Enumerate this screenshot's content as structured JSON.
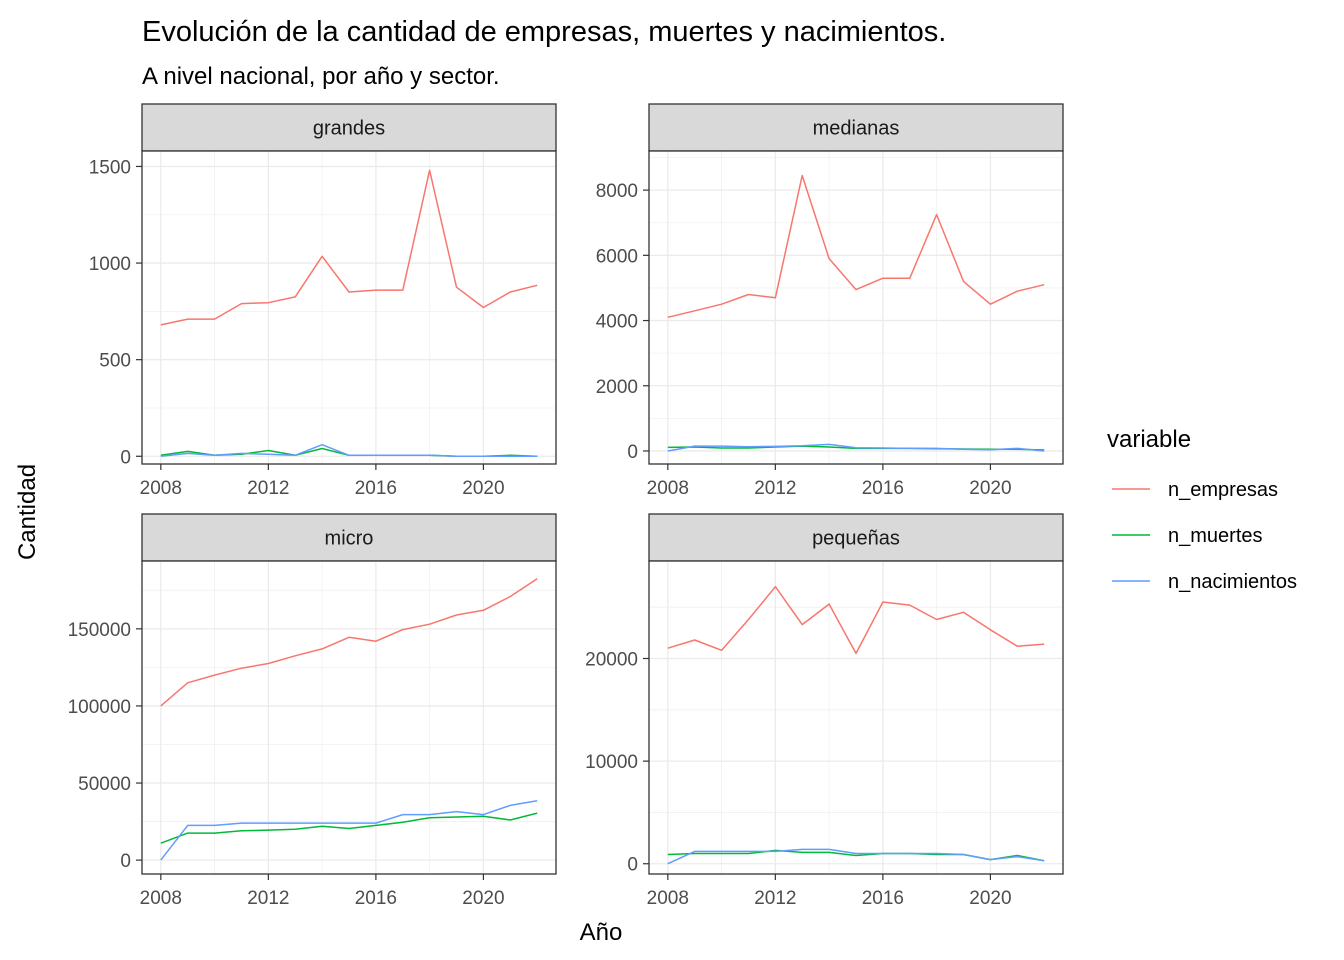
{
  "title": "Evolución de la cantidad de empresas, muertes y nacimientos.",
  "subtitle": "A nivel nacional, por año y sector.",
  "xlabel": "Año",
  "ylabel": "Cantidad",
  "legend": {
    "title": "variable",
    "items": [
      {
        "name": "n_empresas",
        "color": "#F8766D"
      },
      {
        "name": "n_muertes",
        "color": "#00BA38"
      },
      {
        "name": "n_nacimientos",
        "color": "#619CFF"
      }
    ]
  },
  "chart_data": {
    "type": "line",
    "x": [
      2008,
      2009,
      2010,
      2011,
      2012,
      2013,
      2014,
      2015,
      2016,
      2017,
      2018,
      2019,
      2020,
      2021,
      2022
    ],
    "xticks": [
      2008,
      2012,
      2016,
      2020
    ],
    "xlim": [
      2007.3,
      2022.7
    ],
    "grid": true,
    "legend_position": "right",
    "facets": [
      {
        "name": "grandes",
        "ylim": [
          -40,
          1580
        ],
        "yticks": [
          0,
          500,
          1000,
          1500
        ],
        "series": [
          {
            "name": "n_empresas",
            "values": [
              680,
              710,
              710,
              790,
              795,
              825,
              1035,
              850,
              860,
              860,
              1480,
              875,
              770,
              850,
              885
            ]
          },
          {
            "name": "n_muertes",
            "values": [
              5,
              25,
              5,
              10,
              30,
              5,
              40,
              5,
              5,
              5,
              5,
              0,
              0,
              5,
              0
            ]
          },
          {
            "name": "n_nacimientos",
            "values": [
              0,
              15,
              5,
              15,
              10,
              5,
              60,
              5,
              5,
              5,
              5,
              0,
              0,
              0,
              0
            ]
          }
        ]
      },
      {
        "name": "medianas",
        "ylim": [
          -400,
          9200
        ],
        "yticks": [
          0,
          2000,
          4000,
          6000,
          8000
        ],
        "series": [
          {
            "name": "n_empresas",
            "values": [
              4100,
              4300,
              4500,
              4800,
              4700,
              8450,
              5900,
              4950,
              5300,
              5300,
              7250,
              5200,
              4500,
              4900,
              5100
            ]
          },
          {
            "name": "n_muertes",
            "values": [
              110,
              120,
              90,
              90,
              120,
              150,
              120,
              80,
              80,
              80,
              70,
              60,
              50,
              50,
              30
            ]
          },
          {
            "name": "n_nacimientos",
            "values": [
              0,
              150,
              150,
              130,
              140,
              160,
              200,
              100,
              90,
              80,
              80,
              50,
              40,
              80,
              0
            ]
          }
        ]
      },
      {
        "name": "micro",
        "ylim": [
          -9000,
          194000
        ],
        "yticks": [
          0,
          50000,
          100000,
          150000
        ],
        "series": [
          {
            "name": "n_empresas",
            "values": [
              100000,
              115000,
              120000,
              124500,
              127500,
              132500,
              137000,
              144500,
              142000,
              149500,
              153000,
              159000,
              162000,
              171000,
              182500
            ]
          },
          {
            "name": "n_muertes",
            "values": [
              11000,
              17500,
              17500,
              19000,
              19500,
              20000,
              22000,
              20500,
              22500,
              24500,
              27500,
              28000,
              28500,
              26000,
              30500
            ]
          },
          {
            "name": "n_nacimientos",
            "values": [
              0,
              22500,
              22500,
              24000,
              24000,
              24000,
              24000,
              24000,
              24000,
              29500,
              29500,
              31500,
              29500,
              35500,
              38500
            ]
          }
        ]
      },
      {
        "name": "pequeñas",
        "ylim": [
          -1000,
          29500
        ],
        "yticks": [
          0,
          10000,
          20000
        ],
        "series": [
          {
            "name": "n_empresas",
            "values": [
              21000,
              21800,
              20800,
              23800,
              27000,
              23300,
              25300,
              20500,
              25500,
              25200,
              23800,
              24500,
              22800,
              21200,
              21400
            ]
          },
          {
            "name": "n_muertes",
            "values": [
              900,
              1000,
              1000,
              1000,
              1300,
              1100,
              1100,
              800,
              1000,
              1000,
              900,
              900,
              400,
              800,
              300
            ]
          },
          {
            "name": "n_nacimientos",
            "values": [
              0,
              1200,
              1200,
              1200,
              1200,
              1400,
              1400,
              1000,
              1000,
              1000,
              1000,
              900,
              400,
              700,
              300
            ]
          }
        ]
      }
    ]
  }
}
